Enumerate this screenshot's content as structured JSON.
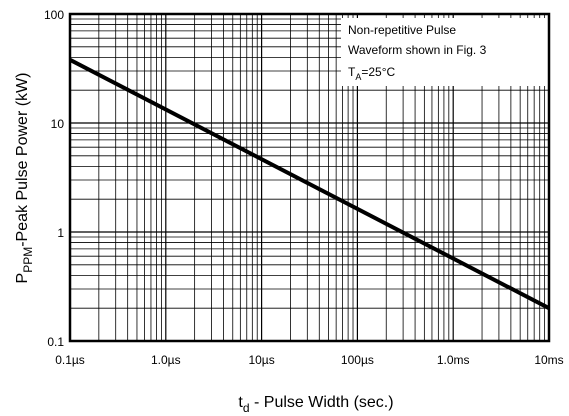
{
  "chart_data": {
    "type": "line",
    "title": "",
    "xlabel": {
      "main": "t",
      "sub": "d",
      "rest": " - Pulse Width (sec.)"
    },
    "ylabel": {
      "main": "P",
      "sub": "PPM",
      "rest": "-Peak Pulse Power (kW)"
    },
    "x_scale": "log",
    "y_scale": "log",
    "xlim": [
      1e-07,
      0.01
    ],
    "ylim": [
      0.1,
      100
    ],
    "x_tick_values": [
      1e-07,
      1e-06,
      1e-05,
      0.0001,
      0.001,
      0.01
    ],
    "x_tick_labels": [
      "0.1µs",
      "1.0µs",
      "10µs",
      "100µs",
      "1.0ms",
      "10ms"
    ],
    "y_tick_values": [
      0.1,
      1,
      10,
      100
    ],
    "y_tick_labels": [
      "0.1",
      "1",
      "10",
      "100"
    ],
    "grid": true,
    "series": [
      {
        "x": [
          1e-07,
          0.01
        ],
        "y": [
          38,
          0.2
        ]
      }
    ],
    "annotation": {
      "line1": "Non-repetitive Pulse",
      "line2": "Waveform shown in Fig. 3",
      "line3_main": "T",
      "line3_sub": "A",
      "line3_rest": "=25°C",
      "position": "top-right"
    }
  }
}
